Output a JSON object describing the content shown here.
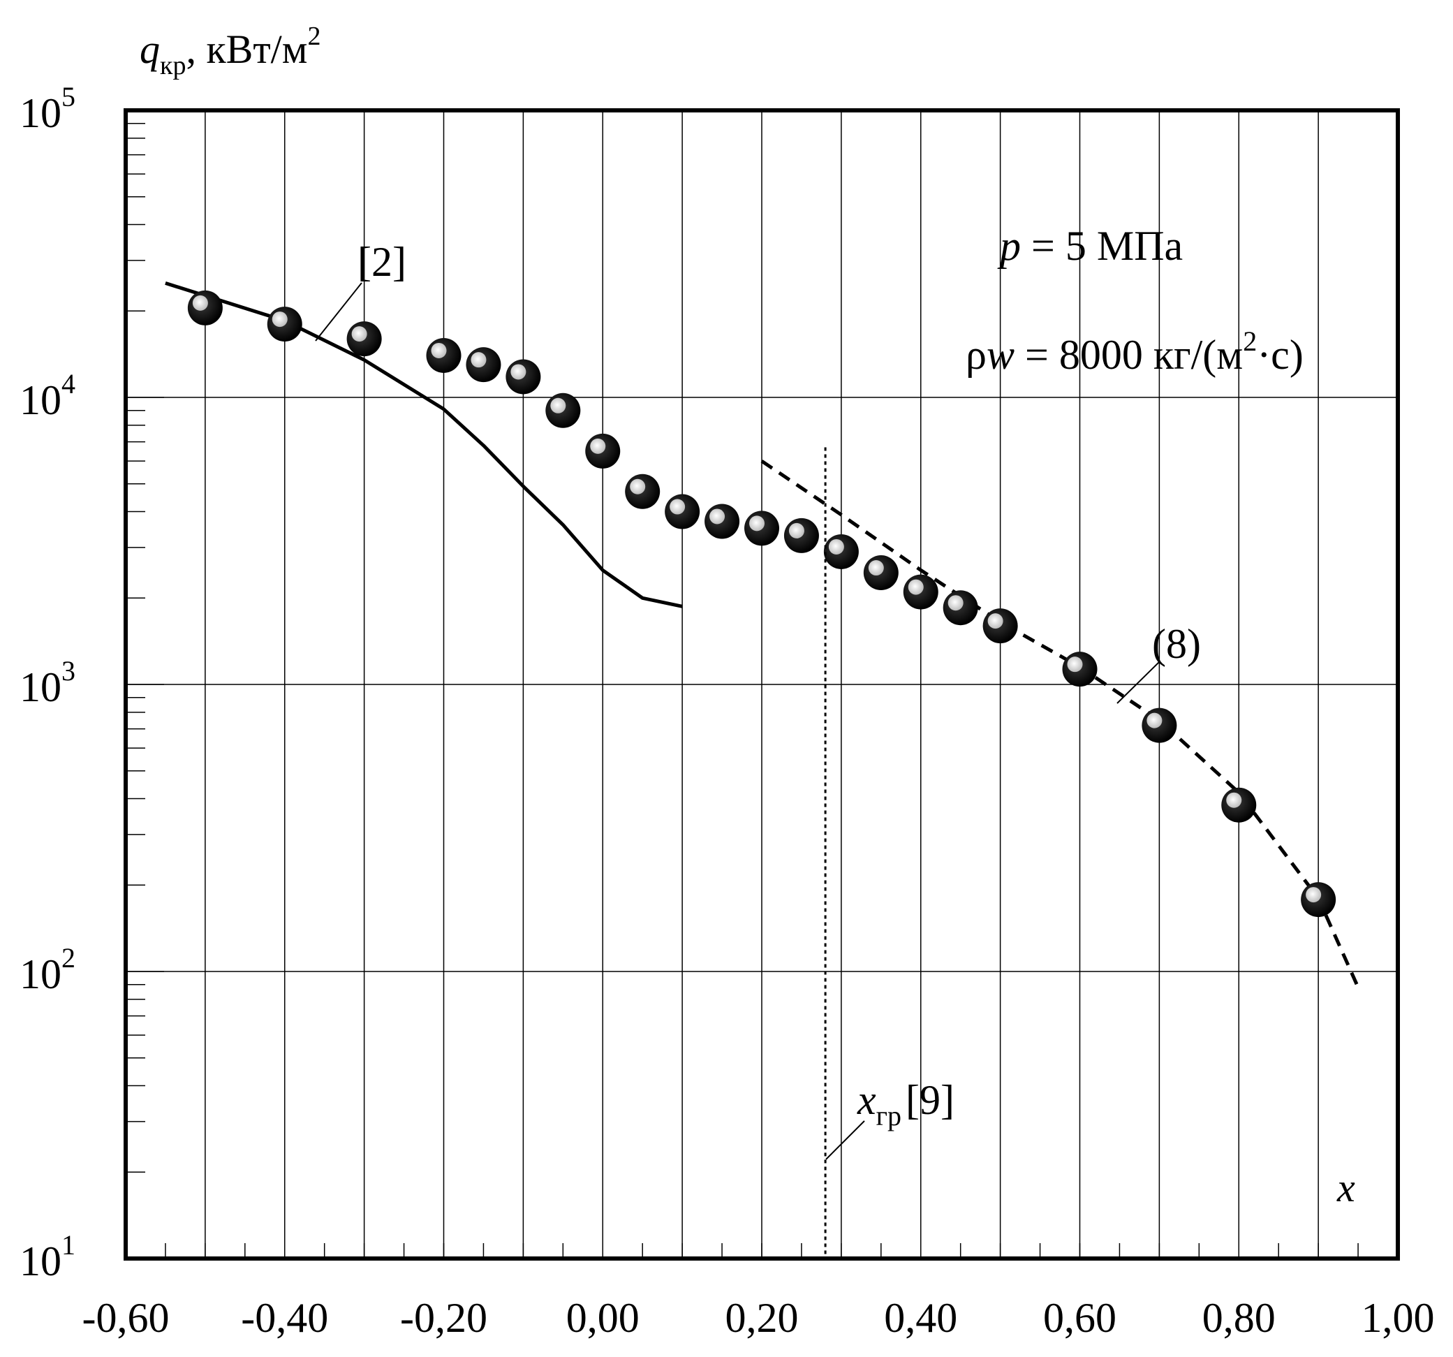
{
  "chart_data": {
    "type": "scatter",
    "y_scale": "log",
    "xlim": [
      -0.6,
      1.0
    ],
    "ylim": [
      10,
      100000
    ],
    "grid": true,
    "x_ticks": [
      -0.6,
      -0.4,
      -0.2,
      0.0,
      0.2,
      0.4,
      0.6,
      0.8,
      1.0
    ],
    "x_tick_labels": [
      "-0,60",
      "-0,40",
      "-0,20",
      "0,00",
      "0,20",
      "0,40",
      "0,60",
      "0,80",
      "1,00"
    ],
    "y_ticks": [
      10,
      100,
      1000,
      10000,
      100000
    ],
    "y_tick_labels": [
      {
        "base": "10",
        "exp": "1"
      },
      {
        "base": "10",
        "exp": "2"
      },
      {
        "base": "10",
        "exp": "3"
      },
      {
        "base": "10",
        "exp": "4"
      },
      {
        "base": "10",
        "exp": "5"
      }
    ],
    "ylabel": {
      "symbol": "q",
      "subscript": "кр",
      "unit": ", кВт/м",
      "unit_exp": "2"
    },
    "xlabel": "x",
    "annotations": {
      "pressure": {
        "symbol": "p",
        "text": " = 5 МПа"
      },
      "mass_flux": {
        "symbol": "ρ",
        "symbol2": "w",
        "text": " = 8000 кг/(м",
        "exp": "2",
        "tail": "·с)"
      },
      "boundary": {
        "symbol": "x",
        "subscript": "гр",
        "ref": "[9]",
        "x": 0.28
      },
      "ref_curve_label": "[2]",
      "eq_curve_label": "(8)"
    },
    "series": [
      {
        "style": "markers",
        "points": [
          [
            -0.5,
            20500
          ],
          [
            -0.4,
            18000
          ],
          [
            -0.3,
            16000
          ],
          [
            -0.2,
            14000
          ],
          [
            -0.15,
            13000
          ],
          [
            -0.1,
            11800
          ],
          [
            -0.05,
            9000
          ],
          [
            0.0,
            6500
          ],
          [
            0.05,
            4700
          ],
          [
            0.1,
            4000
          ],
          [
            0.15,
            3700
          ],
          [
            0.2,
            3500
          ],
          [
            0.25,
            3300
          ],
          [
            0.3,
            2900
          ],
          [
            0.35,
            2450
          ],
          [
            0.4,
            2100
          ],
          [
            0.45,
            1850
          ],
          [
            0.5,
            1600
          ],
          [
            0.6,
            1130
          ],
          [
            0.7,
            720
          ],
          [
            0.8,
            380
          ],
          [
            0.9,
            178
          ]
        ]
      },
      {
        "style": "solid-line",
        "points": [
          [
            -0.55,
            25000
          ],
          [
            -0.4,
            18500
          ],
          [
            -0.3,
            13500
          ],
          [
            -0.2,
            9100
          ],
          [
            -0.15,
            6800
          ],
          [
            -0.1,
            4900
          ],
          [
            -0.05,
            3600
          ],
          [
            0.0,
            2500
          ],
          [
            0.05,
            2000
          ],
          [
            0.1,
            1870
          ]
        ]
      },
      {
        "style": "dashed-line",
        "points": [
          [
            0.2,
            6000
          ],
          [
            0.3,
            3900
          ],
          [
            0.4,
            2500
          ],
          [
            0.5,
            1650
          ],
          [
            0.6,
            1150
          ],
          [
            0.7,
            750
          ],
          [
            0.8,
            420
          ],
          [
            0.9,
            180
          ],
          [
            0.95,
            88
          ]
        ]
      }
    ]
  }
}
